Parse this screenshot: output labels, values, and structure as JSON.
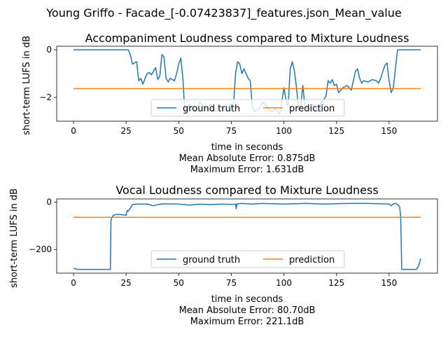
{
  "figure": {
    "suptitle": "Young Griffo - Facade_[-0.07423837]_features.json_Mean_value"
  },
  "chart_data": [
    {
      "type": "line",
      "title": "Accompaniment Loudness compared to Mixture Loudness",
      "xlabel": "time in seconds",
      "ylabel": "short-term LUFS in dB",
      "xlim": [
        -8,
        173
      ],
      "ylim": [
        -3.0,
        0.15
      ],
      "xticks": [
        0,
        25,
        50,
        75,
        100,
        125,
        150
      ],
      "yticks": [
        0,
        -2
      ],
      "grid": false,
      "legend": "lower center",
      "notes": [
        "Mean Absolute Error: 0.875dB",
        "Maximum Error: 1.631dB"
      ],
      "series": [
        {
          "name": "ground truth",
          "color": "#1f77b4",
          "x": [
            0,
            26,
            27,
            28,
            30,
            31,
            32,
            33,
            34,
            35,
            36,
            37,
            38,
            39,
            40,
            41,
            42,
            43,
            44,
            45,
            46,
            47,
            48,
            49,
            50,
            51,
            52,
            52.5,
            53,
            55,
            58,
            60,
            63,
            65,
            68,
            70,
            72,
            74,
            76,
            77,
            78,
            79,
            80,
            81,
            82,
            83,
            84,
            85,
            86,
            88,
            90,
            92,
            94,
            96,
            98,
            99,
            100,
            101,
            102,
            103,
            104,
            105,
            106,
            107,
            108,
            109,
            110,
            112,
            114,
            116,
            118,
            120,
            121,
            122,
            123,
            124,
            125,
            126,
            127,
            128,
            130,
            132,
            133,
            134,
            135,
            136,
            137,
            138,
            140,
            142,
            144,
            145,
            146,
            147,
            148,
            149,
            150,
            151,
            152,
            153,
            154,
            160,
            165
          ],
          "y": [
            0,
            0,
            -0.2,
            -0.6,
            -0.5,
            -1.3,
            -1.2,
            -1.45,
            -1.2,
            -1.0,
            -0.95,
            -1.05,
            -0.9,
            -0.75,
            -1.25,
            -1.1,
            -0.2,
            -0.3,
            -1.2,
            -1.35,
            -1.2,
            -1.25,
            -1.3,
            -1.0,
            -0.6,
            -0.35,
            -1.2,
            -2.0,
            -2.6,
            -2.3,
            -2.6,
            -2.2,
            -2.5,
            -2.3,
            -2.6,
            -2.4,
            -2.55,
            -2.3,
            -2.4,
            -1.0,
            -0.5,
            -0.6,
            -1.0,
            -0.8,
            -1.0,
            -1.2,
            -1.3,
            -2.4,
            -2.6,
            -2.5,
            -2.2,
            -2.4,
            -2.6,
            -2.5,
            -2.7,
            -2.2,
            -1.6,
            -2.1,
            -2.4,
            -0.8,
            -0.5,
            -0.9,
            -1.6,
            -2.5,
            -2.4,
            -1.5,
            -2.4,
            -2.5,
            -2.3,
            -2.6,
            -2.2,
            -1.95,
            -1.3,
            -1.4,
            -1.25,
            -1.5,
            -1.45,
            -1.8,
            -1.7,
            -1.6,
            -1.5,
            -1.7,
            -1.3,
            -0.9,
            -0.8,
            -1.2,
            -1.4,
            -1.3,
            -1.35,
            -1.25,
            -1.3,
            -1.4,
            -1.2,
            -0.9,
            -0.65,
            -0.55,
            -1.3,
            -1.8,
            -1.6,
            -0.8,
            0,
            0,
            0
          ]
        },
        {
          "name": "prediction",
          "color": "#ff7f0e",
          "x": [
            0,
            165
          ],
          "y": [
            -1.631,
            -1.631
          ]
        }
      ]
    },
    {
      "type": "line",
      "title": "Vocal Loudness compared to Mixture Loudness",
      "xlabel": "time in seconds",
      "ylabel": "short-term LUFS in dB",
      "xlim": [
        -8,
        173
      ],
      "ylim": [
        -300,
        14
      ],
      "xticks": [
        0,
        25,
        50,
        75,
        100,
        125,
        150
      ],
      "yticks": [
        0,
        -200
      ],
      "grid": false,
      "legend": "lower center",
      "notes": [
        "Mean Absolute Error: 80.70dB",
        "Maximum Error: 221.1dB"
      ],
      "series": [
        {
          "name": "ground truth",
          "color": "#1f77b4",
          "x": [
            0,
            2,
            10,
            17.5,
            17.8,
            18.2,
            19,
            20,
            22,
            25,
            25.5,
            26,
            27,
            28,
            30,
            35,
            38,
            40,
            42,
            45,
            50,
            55,
            60,
            65,
            70,
            75,
            77,
            77.3,
            77.6,
            80,
            85,
            90,
            100,
            110,
            120,
            130,
            140,
            150,
            151,
            152,
            153,
            154,
            155,
            155.5,
            156,
            160,
            163,
            164,
            165
          ],
          "y": [
            -280,
            -284,
            -284,
            -284,
            -80,
            -65,
            -55,
            -52,
            -52,
            -55,
            -35,
            -38,
            -25,
            -10,
            -8,
            -8,
            -15,
            -10,
            -7,
            -7,
            -8,
            -12,
            -8,
            -10,
            -8,
            -9,
            -8,
            -28,
            -8,
            -5,
            -8,
            -5,
            -8,
            -5,
            -8,
            -5,
            -5,
            -8,
            -15,
            -7,
            -5,
            -10,
            -20,
            -60,
            -284,
            -284,
            -284,
            -270,
            -238
          ]
        },
        {
          "name": "prediction",
          "color": "#ff7f0e",
          "x": [
            0,
            165
          ],
          "y": [
            -63.5,
            -63.5
          ]
        }
      ]
    }
  ]
}
